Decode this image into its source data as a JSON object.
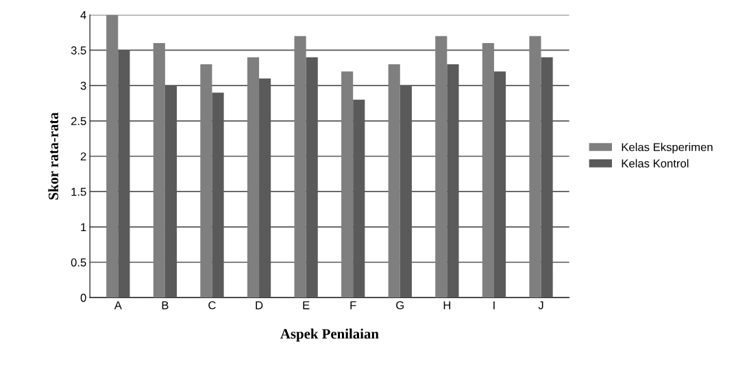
{
  "chart_data": {
    "type": "bar",
    "xlabel": "Aspek Penilaian",
    "ylabel": "Skor rata-rata",
    "categories": [
      "A",
      "B",
      "C",
      "D",
      "E",
      "F",
      "G",
      "H",
      "I",
      "J"
    ],
    "series": [
      {
        "name": "Kelas Eksperimen",
        "color": "#7f7f7f",
        "values": [
          4.0,
          3.6,
          3.3,
          3.4,
          3.7,
          3.2,
          3.3,
          3.7,
          3.6,
          3.7
        ]
      },
      {
        "name": "Kelas Kontrol",
        "color": "#5a5a5a",
        "values": [
          3.5,
          3.0,
          2.9,
          3.1,
          3.4,
          2.8,
          3.0,
          3.3,
          3.2,
          3.4
        ]
      }
    ],
    "ylim": [
      0,
      4
    ],
    "yticks": [
      0,
      0.5,
      1,
      1.5,
      2,
      2.5,
      3,
      3.5,
      4
    ],
    "grid": "y",
    "legend": "right"
  }
}
